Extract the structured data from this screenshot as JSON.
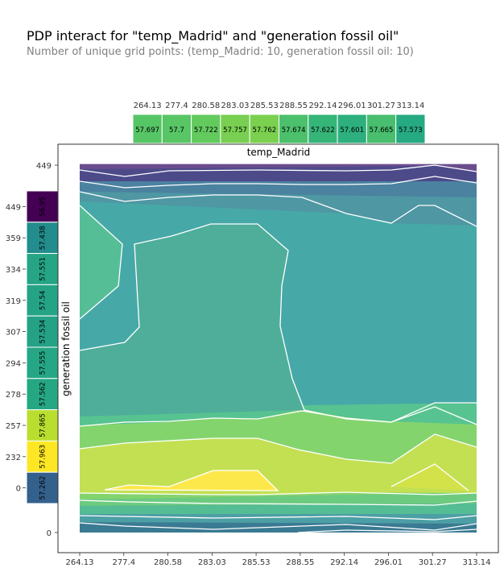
{
  "title": "PDP interact for \"temp_Madrid\" and \"generation fossil oil\"",
  "subtitle": "Number of unique grid points: (temp_Madrid: 10, generation fossil oil: 10)",
  "chart_data": {
    "type": "heatmap",
    "xlabel": "temp_Madrid",
    "ylabel": "generation fossil oil",
    "x_ticks": [
      "264.13",
      "277.4",
      "280.58",
      "283.03",
      "285.53",
      "288.55",
      "292.14",
      "296.01",
      "301.27",
      "313.14"
    ],
    "y_ticks": [
      "0",
      "232",
      "257",
      "278",
      "294",
      "307",
      "319",
      "334",
      "359",
      "449"
    ],
    "y_ticks_inner": [
      "0",
      "232",
      "257",
      "278",
      "294",
      "307",
      "319",
      "334",
      "359",
      "449"
    ],
    "top_marginal": {
      "categories": [
        "264.13",
        "277.4",
        "280.58",
        "283.03",
        "285.53",
        "288.55",
        "292.14",
        "296.01",
        "301.27",
        "313.14"
      ],
      "values": [
        "57.697",
        "57.7",
        "57.722",
        "57.757",
        "57.762",
        "57.674",
        "57.622",
        "57.601",
        "57.665",
        "57.573"
      ]
    },
    "left_marginal": {
      "categories": [
        "449",
        "359",
        "334",
        "319",
        "307",
        "294",
        "278",
        "257",
        "232",
        "0"
      ],
      "values": [
        "56.95",
        "57.438",
        "57.551",
        "57.54",
        "57.534",
        "57.555",
        "57.562",
        "57.865",
        "57.963",
        "57.262"
      ]
    },
    "colormap": "viridis",
    "value_range": [
      56.95,
      57.963
    ]
  }
}
